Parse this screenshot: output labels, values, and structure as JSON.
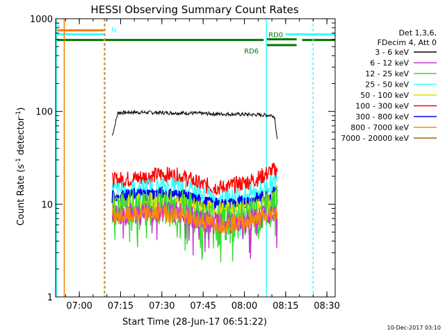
{
  "chart_data": {
    "type": "line",
    "title": "HESSI Observing Summary Count Rates",
    "xlabel": "Start Time (28-Jun-17 06:51:22)",
    "ylabel_main": "Count Rate (s",
    "ylabel_sup1": "-1",
    "ylabel_mid": " detector",
    "ylabel_sup2": "-1",
    "ylabel_end": ")",
    "yscale": "log",
    "ylim": [
      1,
      1000
    ],
    "xlim": [
      "06:51:22",
      "08:33:00"
    ],
    "x_ticks": [
      "07:00",
      "07:15",
      "07:30",
      "07:45",
      "08:00",
      "08:15",
      "08:30"
    ],
    "y_ticks": [
      "1",
      "10",
      "100",
      "1000"
    ],
    "legend": {
      "position": "right",
      "header": [
        "Det 1,3,6,",
        "FDecim 4, Att 0"
      ],
      "entries": [
        {
          "label": "3 - 6 keV",
          "color": "#000000"
        },
        {
          "label": "6 - 12 keV",
          "color": "#cc33cc"
        },
        {
          "label": "12 - 25 keV",
          "color": "#33dd33"
        },
        {
          "label": "25 - 50 keV",
          "color": "#33ffff"
        },
        {
          "label": "50 - 100 keV",
          "color": "#dddd00"
        },
        {
          "label": "100 - 300 keV",
          "color": "#ff0000"
        },
        {
          "label": "300 - 800 keV",
          "color": "#0000ff"
        },
        {
          "label": "800 - 7000 keV",
          "color": "#ff8800"
        },
        {
          "label": "7000 - 20000 keV",
          "color": "#996600"
        }
      ]
    },
    "series": [
      {
        "name": "3 - 6 keV",
        "color": "#000000",
        "x": [
          "07:12",
          "07:14",
          "07:20",
          "07:30",
          "07:40",
          "07:45",
          "07:50",
          "08:00",
          "08:05",
          "08:10",
          "08:11",
          "08:12"
        ],
        "values": [
          55,
          97,
          98,
          97,
          96,
          95,
          94,
          93,
          92,
          91,
          88,
          48
        ]
      },
      {
        "name": "100 - 300 keV",
        "color": "#ff0000",
        "x": [
          "07:12",
          "07:20",
          "07:30",
          "07:37",
          "07:45",
          "07:52",
          "08:00",
          "08:05",
          "08:09",
          "08:12"
        ],
        "values": [
          18,
          19,
          21,
          20,
          16,
          15,
          17,
          19,
          22,
          24
        ]
      },
      {
        "name": "25 - 50 keV",
        "color": "#33ffff",
        "x": [
          "07:12",
          "07:20",
          "07:30",
          "07:37",
          "07:45",
          "07:52",
          "08:00",
          "08:05",
          "08:09",
          "08:12"
        ],
        "values": [
          14,
          14.5,
          16,
          15,
          12.5,
          11.5,
          12.5,
          14,
          16,
          18
        ]
      },
      {
        "name": "300 - 800 keV",
        "color": "#0000ff",
        "x": [
          "07:12",
          "07:20",
          "07:30",
          "07:37",
          "07:45",
          "07:52",
          "08:00",
          "08:05",
          "08:09",
          "08:12"
        ],
        "values": [
          12,
          12.5,
          13,
          12.5,
          10.5,
          9.8,
          10.5,
          11.5,
          12.5,
          14
        ]
      },
      {
        "name": "50 - 100 keV",
        "color": "#dddd00",
        "x": [
          "07:12",
          "07:20",
          "07:30",
          "07:37",
          "07:45",
          "07:52",
          "08:00",
          "08:05",
          "08:09",
          "08:12"
        ],
        "values": [
          10,
          10.5,
          11,
          10.5,
          9,
          8.5,
          9,
          9.5,
          10.5,
          12
        ]
      },
      {
        "name": "12 - 25 keV",
        "color": "#33dd33",
        "x": [
          "07:12",
          "07:20",
          "07:30",
          "07:37",
          "07:45",
          "07:52",
          "08:00",
          "08:05",
          "08:09",
          "08:12"
        ],
        "values": [
          8.5,
          9,
          9.5,
          9,
          7,
          6.5,
          7,
          8,
          9,
          10.5
        ]
      },
      {
        "name": "6 - 12 keV",
        "color": "#cc33cc",
        "x": [
          "07:12",
          "07:20",
          "07:30",
          "07:37",
          "07:45",
          "07:52",
          "08:00",
          "08:05",
          "08:09",
          "08:12"
        ],
        "values": [
          7.5,
          8,
          8.5,
          8,
          6.5,
          6,
          6.5,
          7,
          8,
          9
        ]
      },
      {
        "name": "800 - 7000 keV",
        "color": "#ff8800",
        "x": [
          "07:12",
          "07:20",
          "07:30",
          "07:37",
          "07:45",
          "07:52",
          "08:00",
          "08:05",
          "08:09",
          "08:12"
        ],
        "values": [
          7.5,
          7.5,
          8,
          7.5,
          6.5,
          6,
          6.5,
          7,
          7.5,
          8.5
        ]
      }
    ],
    "flags": [
      {
        "label": "S",
        "color": "#ff7700",
        "start": "06:51:22",
        "end": "07:09",
        "level": 750
      },
      {
        "label": "N",
        "color": "#33ffff",
        "start": "06:51:22",
        "end": "07:09",
        "level": 680
      },
      {
        "label": "",
        "color": "#33ffff",
        "start": "08:15",
        "end": "08:33:00",
        "level": 680
      },
      {
        "label": "",
        "color": "#007700",
        "start": "06:51:22",
        "end": "08:07",
        "level": 590
      },
      {
        "label": "RD0",
        "color": "#007700",
        "start": "08:08",
        "end": "08:19",
        "level": 600
      },
      {
        "label": "RD6",
        "color": "#007700",
        "start": "08:08",
        "end": "08:19",
        "level": 520
      },
      {
        "label": "",
        "color": "#007700",
        "start": "08:21",
        "end": "08:33:00",
        "level": 590
      }
    ],
    "vertical_lines": [
      {
        "time": "06:51:40",
        "color": "#33ffff",
        "style": "solid"
      },
      {
        "time": "06:54:30",
        "color": "#ff7700",
        "style": "solid"
      },
      {
        "time": "07:09:00",
        "color": "#33ffff",
        "style": "dashed"
      },
      {
        "time": "07:09:15",
        "color": "#ff7700",
        "style": "dashed"
      },
      {
        "time": "08:08:00",
        "color": "#33ffff",
        "style": "solid"
      },
      {
        "time": "08:25:00",
        "color": "#33ffff",
        "style": "dashed"
      }
    ],
    "timestamp": "10-Dec-2017 03:10"
  }
}
